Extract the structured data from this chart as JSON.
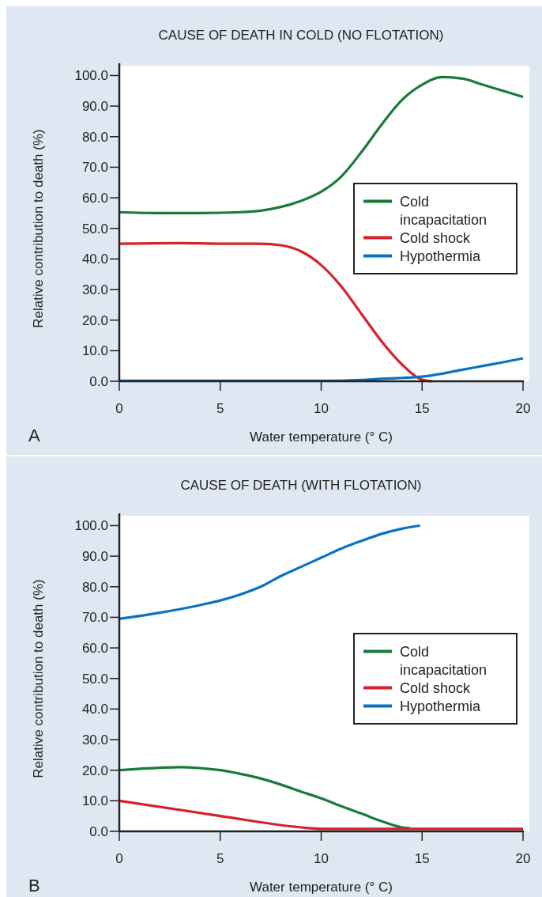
{
  "chart_data": [
    {
      "type": "line",
      "title": "CAUSE OF DEATH IN COLD (NO FLOTATION)",
      "xlabel": "Water temperature (° C)",
      "ylabel": "Relative contribution to death (%)",
      "annotations": [
        "A"
      ],
      "xlim": [
        0,
        20
      ],
      "xticks": [
        0,
        5,
        10,
        15,
        20
      ],
      "ylim": [
        0,
        104
      ],
      "yticks": [
        {
          "value": 0,
          "label": "0.0"
        },
        {
          "value": 10,
          "label": "10.0"
        },
        {
          "value": 20,
          "label": "20.0"
        },
        {
          "value": 30,
          "label": "30.0"
        },
        {
          "value": 40,
          "label": "40.0"
        },
        {
          "value": 50,
          "label": "50.0"
        },
        {
          "value": 60,
          "label": "60.0"
        },
        {
          "value": 70,
          "label": "70.0"
        },
        {
          "value": 80,
          "label": "80.0"
        },
        {
          "value": 90,
          "label": "90.0"
        },
        {
          "value": 100,
          "label": "100.0"
        }
      ],
      "legend": "right",
      "series": [
        {
          "name": "Cold incapacitation",
          "color": "#1a7a3a",
          "x": [
            0,
            2,
            4,
            6,
            7,
            8,
            9,
            10,
            11,
            12,
            13,
            14,
            15,
            16,
            17,
            18,
            19,
            20
          ],
          "values": [
            55.3,
            55,
            55,
            55.3,
            55.8,
            57,
            59,
            62,
            67,
            75,
            84,
            92,
            97,
            99.5,
            99,
            97,
            95,
            93
          ]
        },
        {
          "name": "Cold shock",
          "color": "#d7202c",
          "x": [
            0,
            3,
            5,
            7,
            8,
            9,
            10,
            11,
            12,
            13,
            14,
            14.6,
            15,
            15.5
          ],
          "values": [
            45,
            45.2,
            45,
            45,
            44.5,
            42.5,
            38,
            31,
            22,
            13,
            5.5,
            2,
            0.5,
            0
          ]
        },
        {
          "name": "Hypothermia",
          "color": "#0a72c0",
          "x": [
            0,
            10,
            11,
            12,
            13,
            14,
            15,
            16,
            17,
            18,
            19,
            20
          ],
          "values": [
            0.2,
            0.2,
            0.2,
            0.4,
            0.8,
            1.1,
            1.5,
            2.5,
            3.8,
            5,
            6.2,
            7.5
          ]
        }
      ]
    },
    {
      "type": "line",
      "title": "CAUSE OF DEATH (WITH FLOTATION)",
      "xlabel": "Water temperature (° C)",
      "ylabel": "Relative contribution to death (%)",
      "annotations": [
        "B"
      ],
      "xlim": [
        0,
        20
      ],
      "xticks": [
        0,
        5,
        10,
        15,
        20
      ],
      "ylim": [
        0,
        104
      ],
      "yticks": [
        {
          "value": 0,
          "label": "0.0"
        },
        {
          "value": 10,
          "label": "10.0"
        },
        {
          "value": 20,
          "label": "20.0"
        },
        {
          "value": 30,
          "label": "30.0"
        },
        {
          "value": 40,
          "label": "40.0"
        },
        {
          "value": 50,
          "label": "50.0"
        },
        {
          "value": 60,
          "label": "60.0"
        },
        {
          "value": 70,
          "label": "70.0"
        },
        {
          "value": 80,
          "label": "80.0"
        },
        {
          "value": 90,
          "label": "90.0"
        },
        {
          "value": 100,
          "label": "100.0"
        }
      ],
      "legend": "right",
      "series": [
        {
          "name": "Cold incapacitation",
          "color": "#1a7a3a",
          "x": [
            0,
            2,
            3,
            4,
            5,
            6,
            7,
            8,
            9,
            10,
            11,
            12,
            13,
            14,
            14.4
          ],
          "values": [
            20,
            20.8,
            21,
            20.7,
            20,
            18.8,
            17.3,
            15.3,
            13,
            10.8,
            8.2,
            5.8,
            3.3,
            1.3,
            1
          ]
        },
        {
          "name": "Cold shock",
          "color": "#d7202c",
          "x": [
            0,
            5,
            9.5,
            10,
            20
          ],
          "values": [
            10,
            5,
            1,
            0.8,
            0.8
          ]
        },
        {
          "name": "Hypothermia",
          "color": "#0a72c0",
          "x": [
            0,
            2,
            4,
            5,
            6,
            7,
            8,
            9,
            10,
            11,
            12,
            13,
            14,
            14.9
          ],
          "values": [
            69.5,
            71.5,
            74,
            75.5,
            77.5,
            80,
            83.5,
            86.5,
            89.5,
            92.5,
            95,
            97.3,
            99,
            100
          ]
        }
      ]
    }
  ]
}
